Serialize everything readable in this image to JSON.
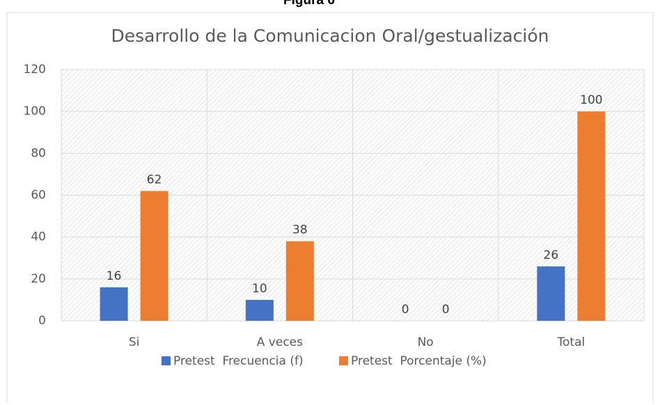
{
  "chart_data": {
    "type": "bar",
    "figure_label": "Figura 6",
    "title": "Desarrollo de la Comunicacion Oral/gestualización",
    "categories": [
      "Si",
      "A veces",
      "No",
      "Total"
    ],
    "series": [
      {
        "name": "Pretest  Frecuencia (f)",
        "color": "#4472c4",
        "values": [
          16,
          10,
          0,
          26
        ]
      },
      {
        "name": "Pretest  Porcentaje (%)",
        "color": "#ed7d31",
        "values": [
          62,
          38,
          0,
          100
        ]
      }
    ],
    "ylim": [
      0,
      120
    ],
    "yticks": [
      0,
      20,
      40,
      60,
      80,
      100,
      120
    ],
    "grid": true,
    "legend": "bottom"
  }
}
